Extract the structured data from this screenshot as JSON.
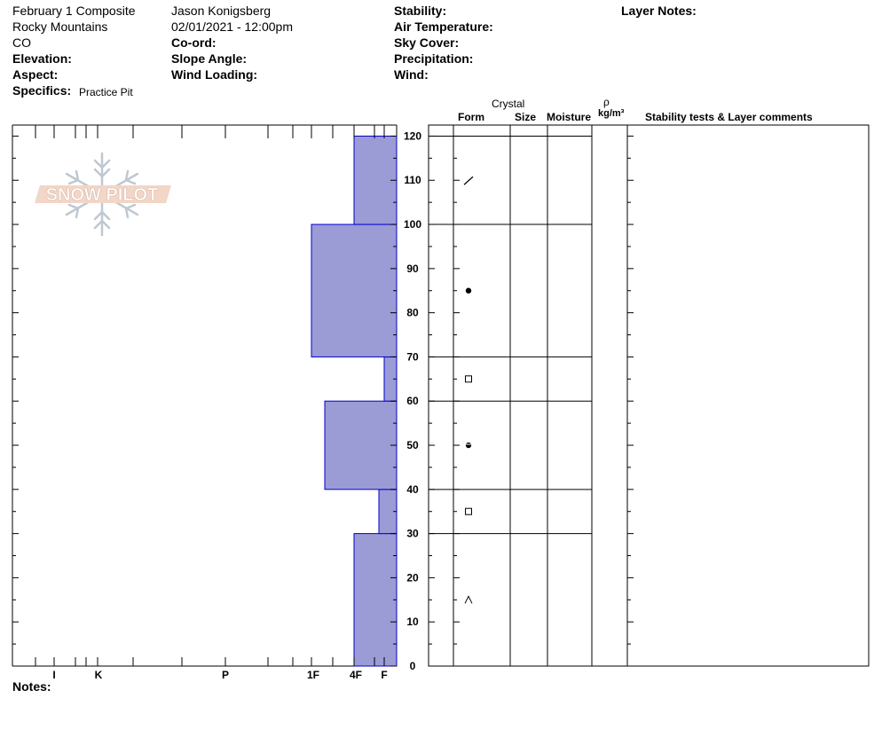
{
  "header": {
    "col1": [
      "February 1 Composite",
      "Rocky Mountains",
      "CO"
    ],
    "elevation_label": "Elevation:",
    "aspect_label": "Aspect:",
    "specifics_label": "Specifics:",
    "specifics_value": "Practice Pit",
    "observer": "Jason Konigsberg",
    "datetime": "02/01/2021 - 12:00pm",
    "coord_label": "Co-ord:",
    "slope_label": "Slope Angle:",
    "wind_loading_label": "Wind Loading:",
    "stability_label": "Stability:",
    "air_temp_label": "Air Temperature:",
    "sky_label": "Sky Cover:",
    "precip_label": "Precipitation:",
    "wind_label": "Wind:",
    "layer_notes_label": "Layer Notes:"
  },
  "logo_text": "SNOW PILOT",
  "columns": {
    "crystal": "Crystal",
    "form": "Form",
    "size": "Size",
    "moisture": "Moisture",
    "rho": "ρ",
    "density_unit": "kg/m³",
    "stability": "Stability tests & Layer comments"
  },
  "notes_label": "Notes:",
  "colors": {
    "layer_fill": "#9b9bd6",
    "layer_stroke": "#0000cc"
  },
  "chart_data": {
    "type": "bar",
    "orientation": "horizontal",
    "height_axis": {
      "label": "",
      "range": [
        0,
        120
      ],
      "ticks": [
        0,
        10,
        20,
        30,
        40,
        50,
        60,
        70,
        80,
        90,
        100,
        110,
        120
      ]
    },
    "hardness_axis": {
      "tick_labels": [
        "I",
        "K",
        "P",
        "1F",
        "4F",
        "F"
      ]
    },
    "layers": [
      {
        "bottom": 0,
        "top": 30,
        "hardness": "4F"
      },
      {
        "bottom": 30,
        "top": 40,
        "hardness": "F+"
      },
      {
        "bottom": 40,
        "top": 60,
        "hardness": "1F-"
      },
      {
        "bottom": 60,
        "top": 70,
        "hardness": "F"
      },
      {
        "bottom": 70,
        "top": 100,
        "hardness": "1F"
      },
      {
        "bottom": 100,
        "top": 120,
        "hardness": "4F"
      }
    ],
    "layer_boundaries": [
      30,
      40,
      60,
      70,
      100,
      120
    ],
    "crystal_forms": [
      {
        "height": 110,
        "form": "decomposing-fragments",
        "symbol": "/"
      },
      {
        "height": 85,
        "form": "melt-forms",
        "symbol": "●"
      },
      {
        "height": 65,
        "form": "faceted-crystals",
        "symbol": "□"
      },
      {
        "height": 50,
        "form": "melt-freeze-rounding",
        "symbol": "◒"
      },
      {
        "height": 35,
        "form": "faceted-crystals",
        "symbol": "□"
      },
      {
        "height": 15,
        "form": "depth-hoar",
        "symbol": "^"
      }
    ]
  }
}
